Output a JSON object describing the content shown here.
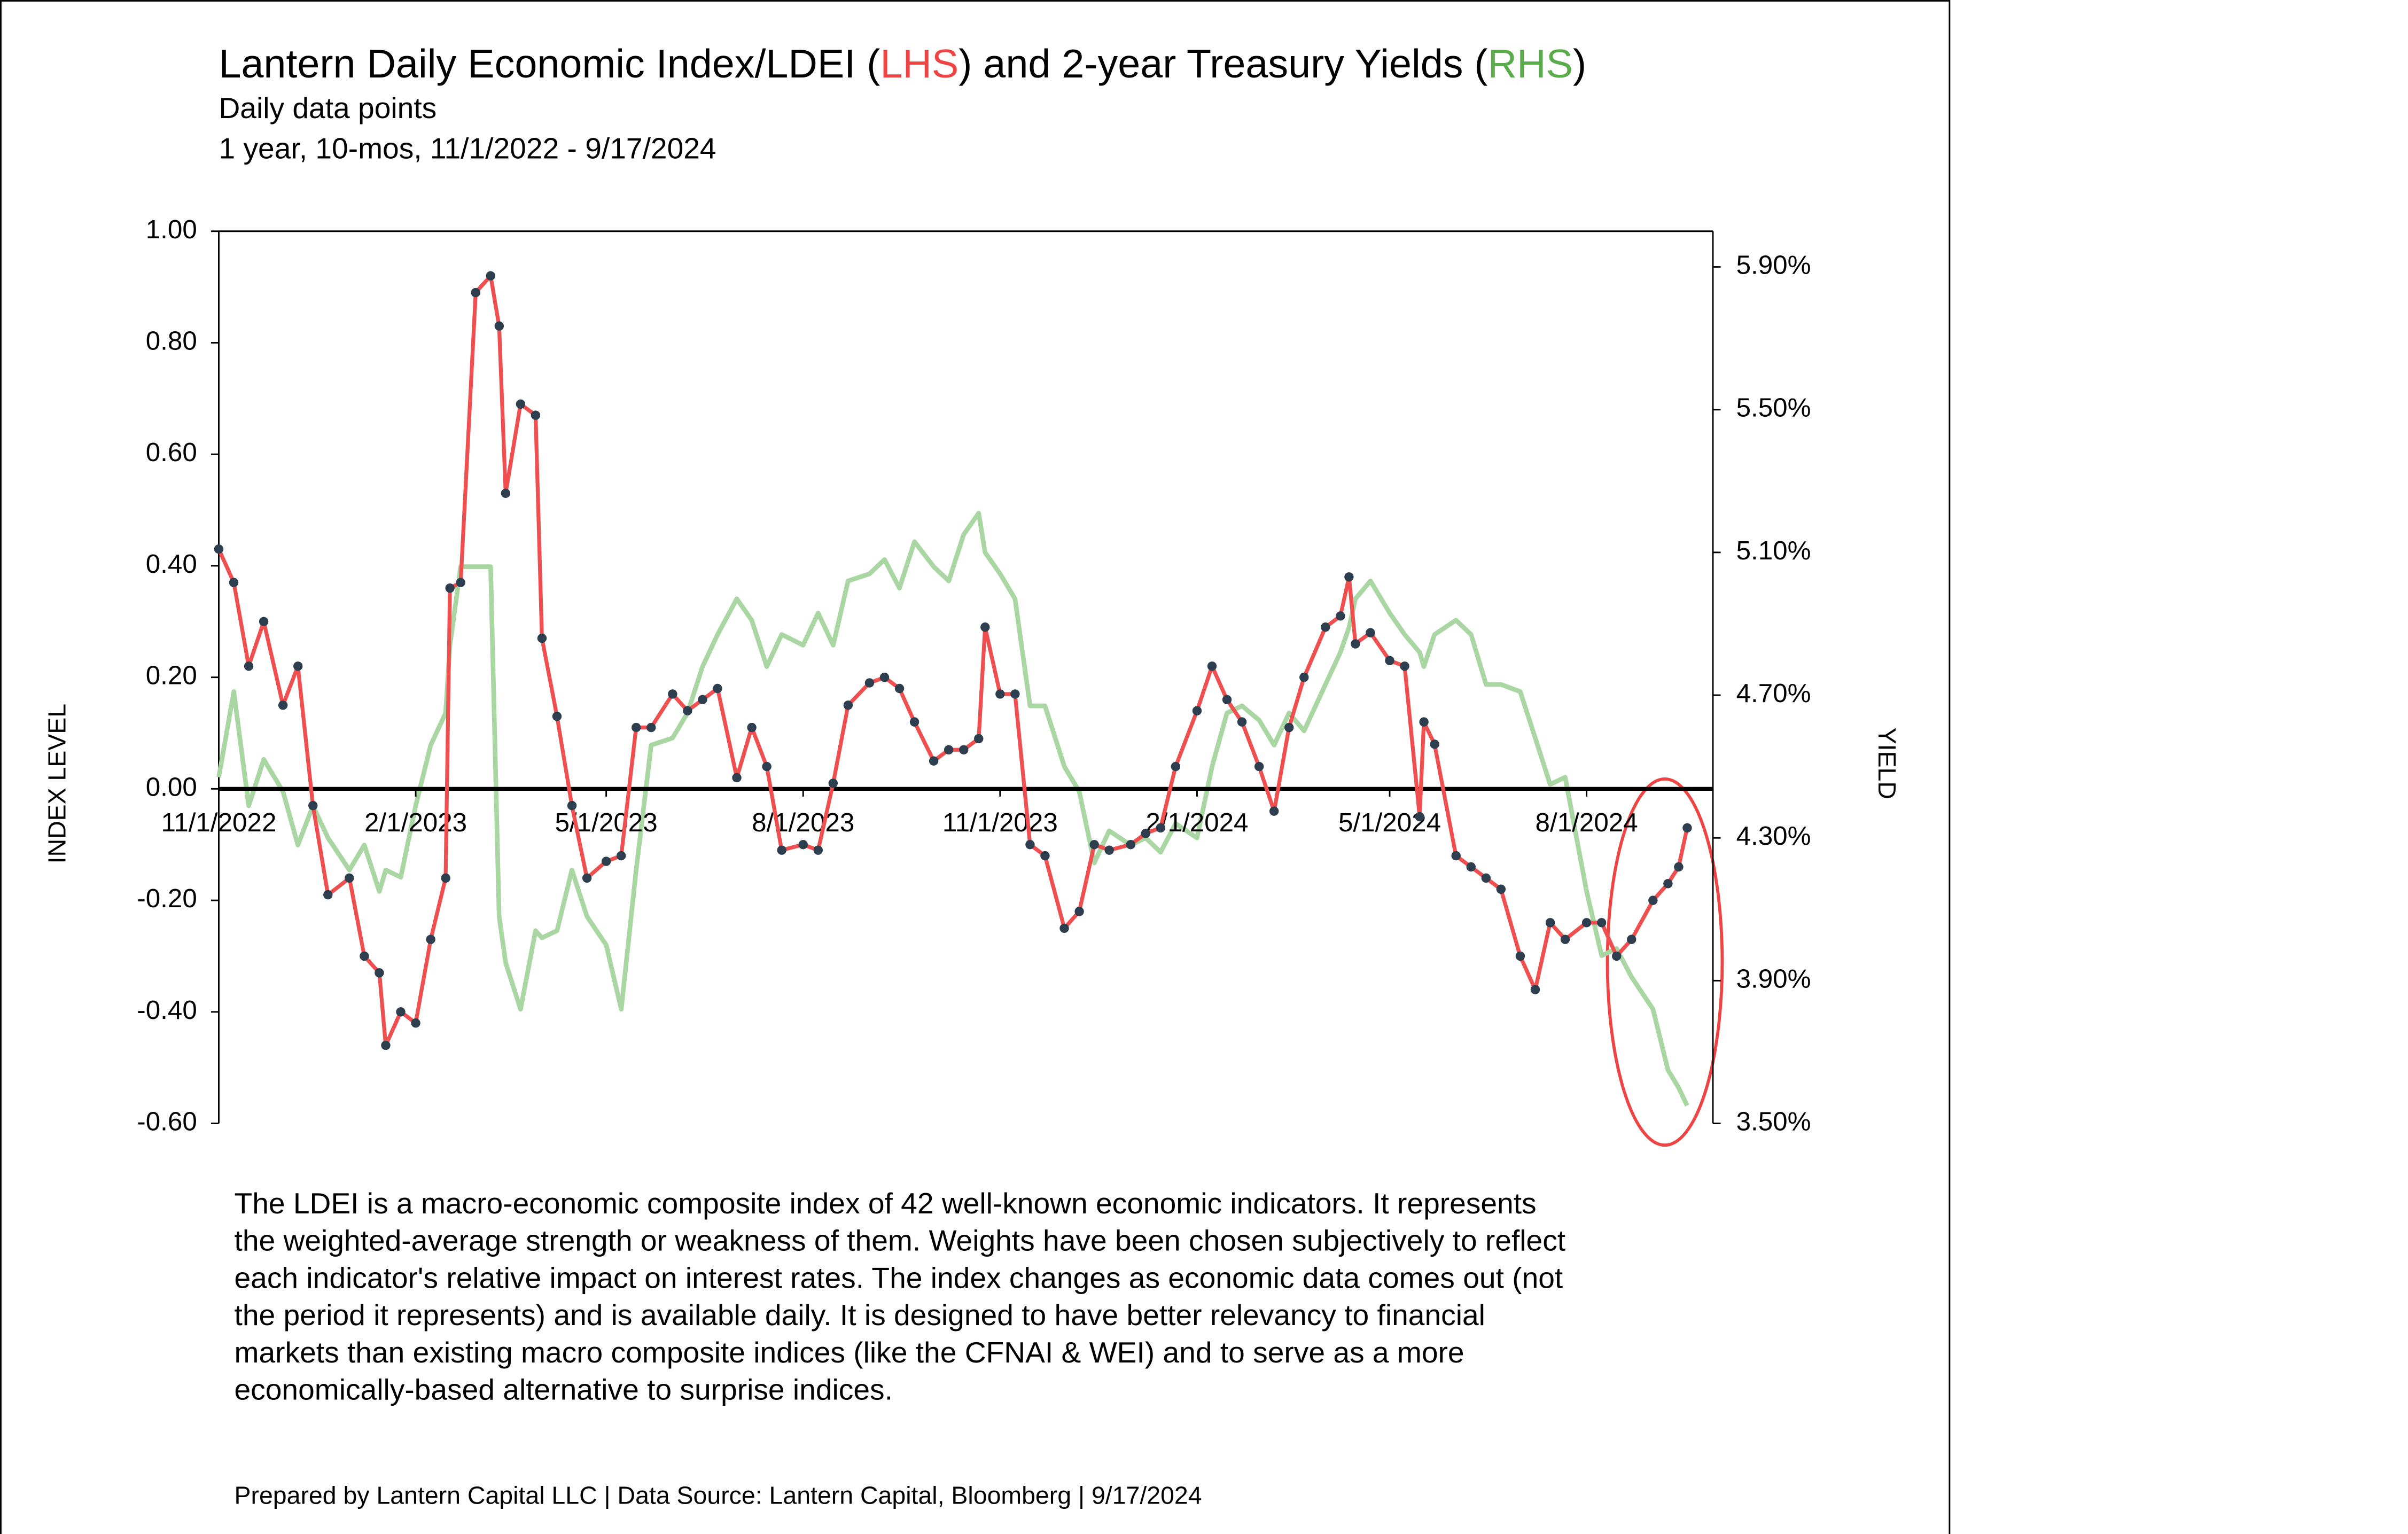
{
  "chart_data": {
    "type": "line",
    "title": [
      "Lantern Daily Economic Index/LDEI (",
      "LHS",
      ") and 2-year Treasury Yields (",
      "RHS",
      ")"
    ],
    "title_colors": [
      "#000000",
      "#ef4444",
      "#000000",
      "#5aab4a",
      "#000000"
    ],
    "subtitle": [
      "Daily data points",
      "1 year, 10-mos, 11/1/2022 - 9/17/2024"
    ],
    "ylabel": "INDEX LEVEL",
    "y2label": "YIELD",
    "x": [
      "2022-11-01",
      "2022-11-08",
      "2022-11-15",
      "2022-11-22",
      "2022-12-01",
      "2022-12-08",
      "2022-12-15",
      "2022-12-22",
      "2023-01-01",
      "2023-01-08",
      "2023-01-15",
      "2023-01-18",
      "2023-01-25",
      "2023-02-01",
      "2023-02-08",
      "2023-02-15",
      "2023-02-17",
      "2023-02-22",
      "2023-03-01",
      "2023-03-08",
      "2023-03-12",
      "2023-03-15",
      "2023-03-22",
      "2023-03-29",
      "2023-04-01",
      "2023-04-08",
      "2023-04-15",
      "2023-04-22",
      "2023-05-01",
      "2023-05-08",
      "2023-05-15",
      "2023-05-22",
      "2023-06-01",
      "2023-06-08",
      "2023-06-15",
      "2023-06-22",
      "2023-07-01",
      "2023-07-08",
      "2023-07-15",
      "2023-07-22",
      "2023-08-01",
      "2023-08-08",
      "2023-08-15",
      "2023-08-22",
      "2023-09-01",
      "2023-09-08",
      "2023-09-15",
      "2023-09-22",
      "2023-10-01",
      "2023-10-08",
      "2023-10-15",
      "2023-10-22",
      "2023-10-25",
      "2023-11-01",
      "2023-11-08",
      "2023-11-15",
      "2023-11-22",
      "2023-12-01",
      "2023-12-08",
      "2023-12-15",
      "2023-12-22",
      "2024-01-01",
      "2024-01-08",
      "2024-01-15",
      "2024-01-22",
      "2024-02-01",
      "2024-02-08",
      "2024-02-15",
      "2024-02-22",
      "2024-03-01",
      "2024-03-08",
      "2024-03-15",
      "2024-03-22",
      "2024-04-01",
      "2024-04-08",
      "2024-04-12",
      "2024-04-15",
      "2024-04-22",
      "2024-05-01",
      "2024-05-08",
      "2024-05-15",
      "2024-05-17",
      "2024-05-22",
      "2024-06-01",
      "2024-06-08",
      "2024-06-15",
      "2024-06-22",
      "2024-07-01",
      "2024-07-08",
      "2024-07-15",
      "2024-07-22",
      "2024-08-01",
      "2024-08-08",
      "2024-08-15",
      "2024-08-22",
      "2024-09-01",
      "2024-09-08",
      "2024-09-13",
      "2024-09-17"
    ],
    "series": [
      {
        "name": "LDEI",
        "color": "#ef4f4f",
        "marker_color": "#2d3e4e",
        "axis": "y",
        "values": [
          0.43,
          0.37,
          0.22,
          0.3,
          0.15,
          0.22,
          -0.03,
          -0.19,
          -0.16,
          -0.3,
          -0.33,
          -0.46,
          -0.4,
          -0.42,
          -0.27,
          -0.16,
          0.36,
          0.37,
          0.89,
          0.92,
          0.83,
          0.53,
          0.69,
          0.67,
          0.27,
          0.13,
          -0.03,
          -0.16,
          -0.13,
          -0.12,
          0.11,
          0.11,
          0.17,
          0.14,
          0.16,
          0.18,
          0.02,
          0.11,
          0.04,
          -0.11,
          -0.1,
          -0.11,
          0.01,
          0.15,
          0.19,
          0.2,
          0.18,
          0.12,
          0.05,
          0.07,
          0.07,
          0.09,
          0.29,
          0.17,
          0.17,
          -0.1,
          -0.12,
          -0.25,
          -0.22,
          -0.1,
          -0.11,
          -0.1,
          -0.08,
          -0.07,
          0.04,
          0.14,
          0.22,
          0.16,
          0.12,
          0.04,
          -0.04,
          0.11,
          0.2,
          0.29,
          0.31,
          0.38,
          0.26,
          0.28,
          0.23,
          0.22,
          -0.05,
          0.12,
          0.08,
          -0.12,
          -0.14,
          -0.16,
          -0.18,
          -0.3,
          -0.36,
          -0.24,
          -0.27,
          -0.24,
          -0.24,
          -0.3,
          -0.27,
          -0.2,
          -0.17,
          -0.14,
          -0.07
        ]
      },
      {
        "name": "2-year Treasury Yield",
        "color": "#a9d6a2",
        "axis": "y2",
        "values": [
          4.47,
          4.71,
          4.39,
          4.52,
          4.43,
          4.28,
          4.39,
          4.3,
          4.21,
          4.28,
          4.15,
          4.21,
          4.19,
          4.39,
          4.56,
          4.65,
          4.84,
          5.06,
          5.06,
          5.06,
          4.08,
          3.95,
          3.82,
          4.04,
          4.02,
          4.04,
          4.21,
          4.08,
          4.0,
          3.82,
          4.21,
          4.56,
          4.58,
          4.65,
          4.78,
          4.87,
          4.97,
          4.91,
          4.78,
          4.87,
          4.84,
          4.93,
          4.84,
          5.02,
          5.04,
          5.08,
          5.0,
          5.13,
          5.06,
          5.02,
          5.15,
          5.21,
          5.1,
          5.04,
          4.97,
          4.67,
          4.67,
          4.5,
          4.43,
          4.23,
          4.32,
          4.28,
          4.3,
          4.26,
          4.34,
          4.3,
          4.5,
          4.65,
          4.67,
          4.63,
          4.56,
          4.65,
          4.6,
          4.73,
          4.82,
          4.89,
          4.97,
          5.02,
          4.93,
          4.87,
          4.82,
          4.78,
          4.87,
          4.91,
          4.87,
          4.73,
          4.73,
          4.71,
          4.58,
          4.45,
          4.47,
          4.15,
          3.97,
          3.99,
          3.91,
          3.82,
          3.65,
          3.6,
          3.55
        ]
      }
    ],
    "xlim": [
      "2022-11-01",
      "2024-09-29"
    ],
    "xticks": [
      {
        "value": "2022-11-01",
        "label": "11/1/2022"
      },
      {
        "value": "2023-02-01",
        "label": "2/1/2023"
      },
      {
        "value": "2023-05-01",
        "label": "5/1/2023"
      },
      {
        "value": "2023-08-01",
        "label": "8/1/2023"
      },
      {
        "value": "2023-11-01",
        "label": "11/1/2023"
      },
      {
        "value": "2024-02-01",
        "label": "2/1/2024"
      },
      {
        "value": "2024-05-01",
        "label": "5/1/2024"
      },
      {
        "value": "2024-08-01",
        "label": "8/1/2024"
      }
    ],
    "ylim": [
      -0.6,
      1.0
    ],
    "yticks": [
      {
        "value": -0.6,
        "label": "-0.60"
      },
      {
        "value": -0.4,
        "label": "-0.40"
      },
      {
        "value": -0.2,
        "label": "-0.20"
      },
      {
        "value": 0,
        "label": "0.00"
      },
      {
        "value": 0.2,
        "label": "0.20"
      },
      {
        "value": 0.4,
        "label": "0.40"
      },
      {
        "value": 0.6,
        "label": "0.60"
      },
      {
        "value": 0.8,
        "label": "0.80"
      },
      {
        "value": 1.0,
        "label": "1.00"
      }
    ],
    "y2lim": [
      3.5,
      6.0
    ],
    "y2ticks": [
      {
        "value": 3.5,
        "label": "3.50%"
      },
      {
        "value": 3.9,
        "label": "3.90%"
      },
      {
        "value": 4.3,
        "label": "4.30%"
      },
      {
        "value": 4.7,
        "label": "4.70%"
      },
      {
        "value": 5.1,
        "label": "5.10%"
      },
      {
        "value": 5.5,
        "label": "5.50%"
      },
      {
        "value": 5.9,
        "label": "5.90%"
      }
    ],
    "ytick_color": "#ef4444",
    "y2tick_color": "#5aab4a",
    "grid": false,
    "description": [
      "The LDEI is a macro-economic composite index of 42 well-known economic indicators. It represents",
      "the weighted-average strength or weakness of them. Weights have been chosen subjectively to reflect",
      "each indicator's relative impact on interest rates. The index changes as economic data comes out (not",
      "the period it represents) and is available daily. It is designed to have better relevancy to financial",
      "markets than existing macro composite indices (like the CFNAI & WEI) and to serve as a more",
      "economically-based alternative to surprise indices."
    ],
    "footer": "Prepared by Lantern Capital LLC | Data Source: Lantern Capital, Bloomberg | 9/17/2024"
  }
}
